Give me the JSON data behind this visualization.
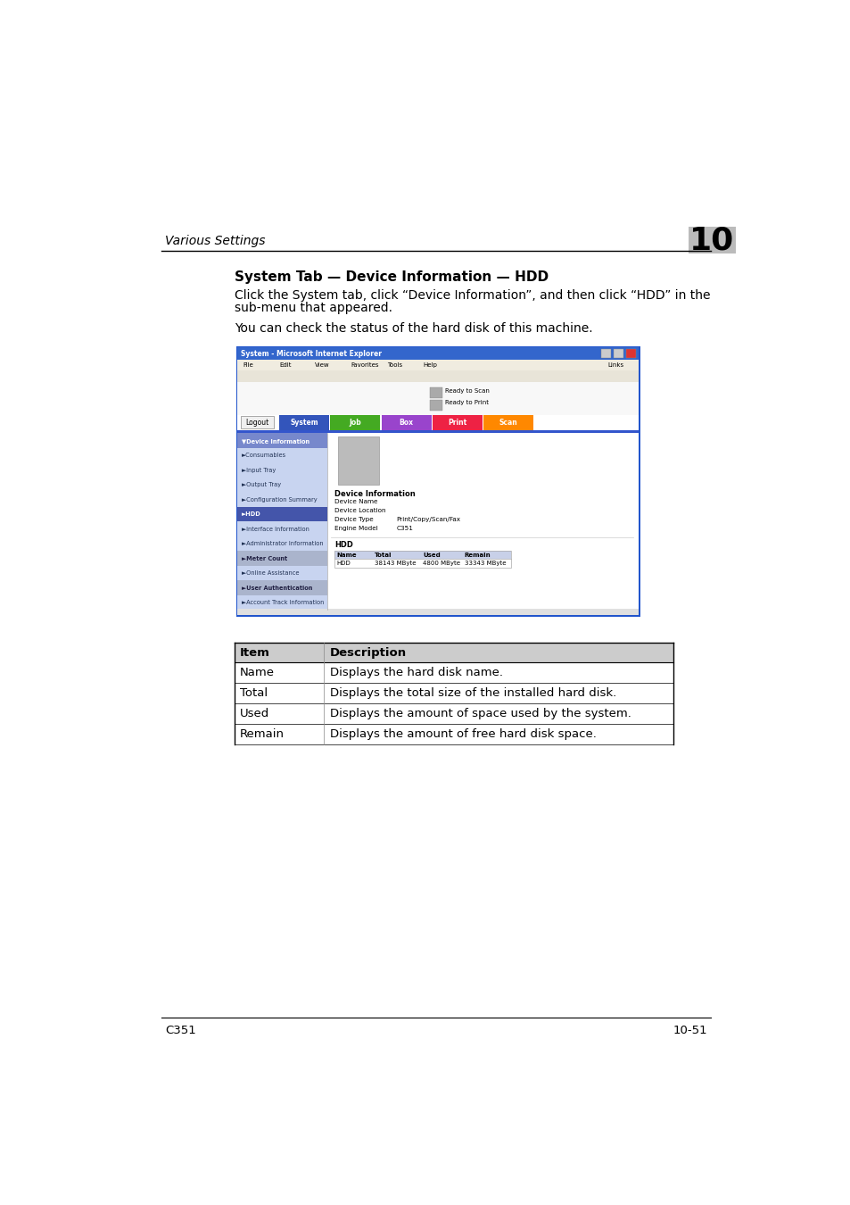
{
  "page_bg": "#ffffff",
  "header_text": "Various Settings",
  "header_chapter": "10",
  "section_title": "System Tab — Device Information — HDD",
  "para1_line1": "Click the System tab, click “Device Information”, and then click “HDD” in the",
  "para1_line2": "sub-menu that appeared.",
  "para2": "You can check the status of the hard disk of this machine.",
  "footer_left": "C351",
  "footer_right": "10-51",
  "table_headers": [
    "Item",
    "Description"
  ],
  "table_rows": [
    [
      "Name",
      "Displays the hard disk name."
    ],
    [
      "Total",
      "Displays the total size of the installed hard disk."
    ],
    [
      "Used",
      "Displays the amount of space used by the system."
    ],
    [
      "Remain",
      "Displays the amount of free hard disk space."
    ]
  ],
  "screenshot_title": "System - Microsoft Internet Explorer",
  "nav_tabs": [
    "Logout",
    "System",
    "Job",
    "Box",
    "Print",
    "Scan"
  ],
  "nav_colors": [
    "#f0f0f0",
    "#3355bb",
    "#44aa22",
    "#9944cc",
    "#ee2244",
    "#ff8800"
  ],
  "nav_text_colors": [
    "#000000",
    "#ffffff",
    "#ffffff",
    "#ffffff",
    "#ffffff",
    "#ffffff"
  ],
  "sidebar_items": [
    "Device Information",
    "Consumables",
    "Input Tray",
    "Output Tray",
    "Configuration Summary",
    "HDD",
    "Interface Information",
    "Administrator Information",
    "Meter Count",
    "Online Assistance",
    "User Authentication",
    "Account Track Information"
  ],
  "device_info_labels": [
    "Device Name",
    "Device Location",
    "Device Type",
    "Engine Model"
  ],
  "device_info_values": [
    "",
    "",
    "Print/Copy/Scan/Fax",
    "C351"
  ],
  "hdd_table_headers": [
    "Name",
    "Total",
    "Used",
    "Remain"
  ],
  "hdd_table_row": [
    "HDD",
    "38143 MByte",
    "4800 MByte",
    "33343 MByte"
  ],
  "sidebar_normal_color": "#aab4dd",
  "sidebar_highlight_color": "#7788cc",
  "sidebar_selected_color": "#4455aa",
  "sidebar_text_color": "#ffffff"
}
